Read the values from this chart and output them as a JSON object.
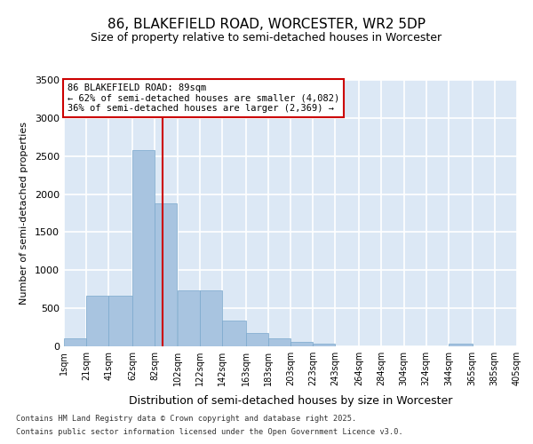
{
  "title1": "86, BLAKEFIELD ROAD, WORCESTER, WR2 5DP",
  "title2": "Size of property relative to semi-detached houses in Worcester",
  "xlabel": "Distribution of semi-detached houses by size in Worcester",
  "ylabel": "Number of semi-detached properties",
  "property_size": 89,
  "property_label": "86 BLAKEFIELD ROAD: 89sqm",
  "pct_smaller": 62,
  "pct_larger": 36,
  "count_smaller": 4082,
  "count_larger": 2369,
  "bin_edges": [
    1,
    21,
    41,
    62,
    82,
    102,
    122,
    142,
    163,
    183,
    203,
    223,
    243,
    264,
    284,
    304,
    324,
    344,
    365,
    385,
    405
  ],
  "bar_heights": [
    100,
    670,
    670,
    2580,
    1880,
    730,
    730,
    340,
    170,
    100,
    60,
    30,
    5,
    0,
    0,
    0,
    0,
    30,
    0,
    0
  ],
  "bar_color": "#a8c4e0",
  "bar_edge_color": "#7aa8cc",
  "line_color": "#cc0000",
  "background_color": "#dce8f5",
  "grid_color": "#ffffff",
  "ylim": [
    0,
    3500
  ],
  "yticks": [
    0,
    500,
    1000,
    1500,
    2000,
    2500,
    3000,
    3500
  ],
  "footer_line1": "Contains HM Land Registry data © Crown copyright and database right 2025.",
  "footer_line2": "Contains public sector information licensed under the Open Government Licence v3.0."
}
